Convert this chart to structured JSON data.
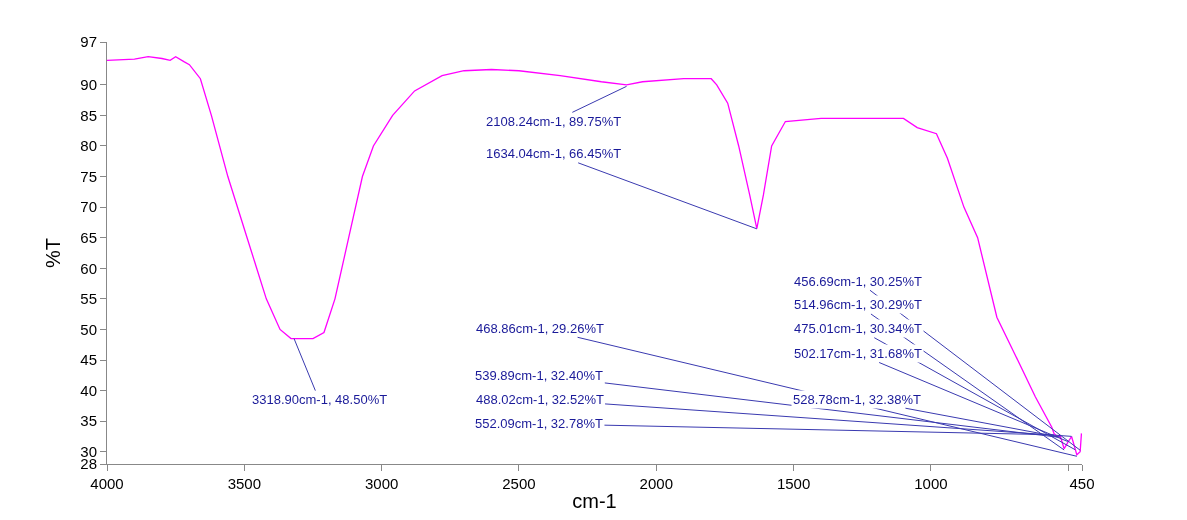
{
  "chart_data": {
    "type": "line",
    "xlabel": "cm-1",
    "ylabel": "%T",
    "x": [
      4000,
      3900,
      3850,
      3800,
      3770,
      3750,
      3720,
      3700,
      3660,
      3620,
      3560,
      3490,
      3420,
      3370,
      3330,
      3290,
      3250,
      3210,
      3170,
      3120,
      3070,
      3030,
      2960,
      2880,
      2780,
      2700,
      2600,
      2500,
      2350,
      2200,
      2108.24,
      2050,
      1900,
      1800,
      1780,
      1740,
      1700,
      1660,
      1634.04,
      1610,
      1580,
      1530,
      1400,
      1200,
      1100,
      1050,
      980,
      940,
      880,
      830,
      760,
      695,
      620,
      560,
      552.09,
      539.89,
      528.78,
      514.96,
      502.17,
      488.02,
      475.01,
      468.86,
      456.69,
      452
    ],
    "series": [
      {
        "color": "#ff00ff",
        "values": [
          94,
          94.2,
          94.6,
          94.3,
          94,
          94.6,
          93.8,
          93.3,
          91,
          85,
          75,
          65,
          55,
          50,
          48.5,
          48.5,
          48.5,
          49.5,
          55,
          65,
          75,
          80,
          85,
          89,
          91.5,
          92.3,
          92.5,
          92.3,
          91.5,
          90.5,
          90,
          90.5,
          91,
          91,
          90,
          87,
          80,
          72,
          66.5,
          72,
          80,
          84,
          84.5,
          84.5,
          84.5,
          83,
          82,
          78,
          70,
          65,
          52,
          46,
          39,
          34,
          33,
          32.5,
          32.5,
          30.5,
          31.5,
          32.5,
          30.5,
          29.5,
          30,
          33
        ]
      }
    ],
    "xlim": [
      4000,
      450
    ],
    "xticks": [
      4000,
      3500,
      3000,
      2500,
      2000,
      1500,
      1000,
      {
        "value": 500,
        "label": null
      },
      450
    ],
    "ylim": [
      28,
      97
    ],
    "yticks": [
      28,
      30,
      35,
      40,
      45,
      50,
      55,
      60,
      65,
      70,
      75,
      80,
      85,
      90,
      97
    ],
    "marker": "none",
    "line_style": "solid",
    "annotations": [
      {
        "text": "3318.90cm-1, 48.50%T",
        "x": 3318.9,
        "y": 48.5
      },
      {
        "text": "2108.24cm-1, 89.75%T",
        "x": 2108.24,
        "y": 89.75
      },
      {
        "text": "1634.04cm-1, 66.45%T",
        "x": 1634.04,
        "y": 66.45
      },
      {
        "text": "468.86cm-1, 29.26%T",
        "x": 468.86,
        "y": 29.26
      },
      {
        "text": "539.89cm-1, 32.40%T",
        "x": 539.89,
        "y": 32.4
      },
      {
        "text": "488.02cm-1, 32.52%T",
        "x": 488.02,
        "y": 32.52
      },
      {
        "text": "552.09cm-1, 32.78%T",
        "x": 552.09,
        "y": 32.78
      },
      {
        "text": "456.69cm-1, 30.25%T",
        "x": 456.69,
        "y": 30.25
      },
      {
        "text": "514.96cm-1, 30.29%T",
        "x": 514.96,
        "y": 30.29
      },
      {
        "text": "475.01cm-1, 30.34%T",
        "x": 475.01,
        "y": 30.34
      },
      {
        "text": "502.17cm-1, 31.68%T",
        "x": 502.17,
        "y": 31.68
      },
      {
        "text": "528.78cm-1, 32.38%T",
        "x": 528.78,
        "y": 32.38
      }
    ]
  }
}
